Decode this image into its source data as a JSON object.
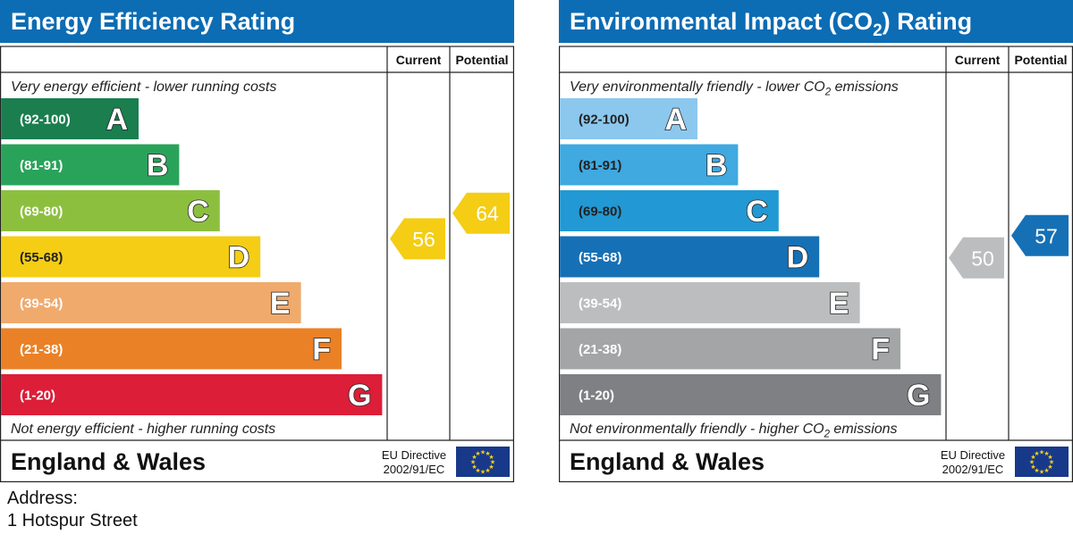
{
  "chart_data": [
    {
      "type": "bar",
      "title": "Energy Efficiency Rating",
      "title_sub": "",
      "title_tail": "",
      "column_current": "Current",
      "column_potential": "Potential",
      "top_text": {
        "main": "Very energy efficient - lower running costs",
        "sub": "",
        "tail": ""
      },
      "bottom_text": {
        "main": "Not energy efficient - higher running costs",
        "sub": "",
        "tail": ""
      },
      "region": "England & Wales",
      "directive_line1": "EU Directive",
      "directive_line2": "2002/91/EC",
      "bands": [
        {
          "range": "(92-100)",
          "letter": "A",
          "color": "#1a7e4f"
        },
        {
          "range": "(81-91)",
          "letter": "B",
          "color": "#2aa35a"
        },
        {
          "range": "(69-80)",
          "letter": "C",
          "color": "#8dbf3f"
        },
        {
          "range": "(55-68)",
          "letter": "D",
          "color": "#f4cd14"
        },
        {
          "range": "(39-54)",
          "letter": "E",
          "color": "#f0aa6c"
        },
        {
          "range": "(21-38)",
          "letter": "F",
          "color": "#ea8126"
        },
        {
          "range": "(1-20)",
          "letter": "G",
          "color": "#dc1e38"
        }
      ],
      "current": 56,
      "potential": 64,
      "current_color": "#f4cd14",
      "potential_color": "#f4cd14",
      "header_color": "#0c6cb4",
      "eu_flag_color": "#18398a"
    },
    {
      "type": "bar",
      "title": "Environmental Impact (CO",
      "title_sub": "2",
      "title_tail": ") Rating",
      "column_current": "Current",
      "column_potential": "Potential",
      "top_text": {
        "main": "Very environmentally friendly - lower CO",
        "sub": "2",
        "tail": " emissions"
      },
      "bottom_text": {
        "main": "Not environmentally friendly - higher CO",
        "sub": "2",
        "tail": " emissions"
      },
      "region": "England & Wales",
      "directive_line1": "EU Directive",
      "directive_line2": "2002/91/EC",
      "bands": [
        {
          "range": "(92-100)",
          "letter": "A",
          "color": "#8cc8ee"
        },
        {
          "range": "(81-91)",
          "letter": "B",
          "color": "#3fa9e0"
        },
        {
          "range": "(69-80)",
          "letter": "C",
          "color": "#2299d4"
        },
        {
          "range": "(55-68)",
          "letter": "D",
          "color": "#1670b6"
        },
        {
          "range": "(39-54)",
          "letter": "E",
          "color": "#bcbdbf"
        },
        {
          "range": "(21-38)",
          "letter": "F",
          "color": "#a4a5a7"
        },
        {
          "range": "(1-20)",
          "letter": "G",
          "color": "#7f8083"
        }
      ],
      "current": 50,
      "potential": 57,
      "current_color": "#bcbdbf",
      "potential_color": "#1670b6",
      "header_color": "#0c6cb4",
      "eu_flag_color": "#18398a"
    }
  ],
  "address": {
    "label": "Address:",
    "value": "1 Hotspur Street"
  }
}
